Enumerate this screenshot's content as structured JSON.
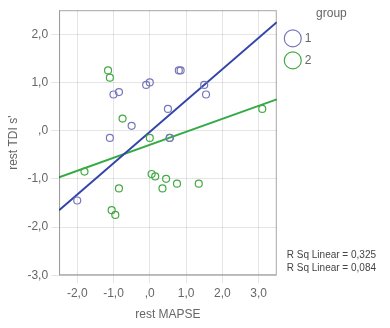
{
  "chart_data": {
    "type": "scatter",
    "xlabel": "rest MAPSE",
    "ylabel": "rest TDI s'",
    "series": [
      {
        "name": "1",
        "color": "#7777bb",
        "marker": "circle",
        "x": [
          -2.0,
          -1.1,
          -1.0,
          -0.85,
          -0.5,
          -0.1,
          0.0,
          0.5,
          0.55,
          0.8,
          0.85,
          1.5,
          1.55
        ],
        "values": [
          -1.45,
          -0.15,
          0.75,
          0.8,
          0.1,
          0.95,
          1.0,
          0.45,
          -0.15,
          1.25,
          1.25,
          0.95,
          0.75
        ]
      },
      {
        "name": "2",
        "color": "#44aa44",
        "marker": "circle",
        "x": [
          -1.8,
          -1.15,
          -1.1,
          -1.05,
          -0.95,
          -0.85,
          -0.75,
          0.0,
          0.05,
          0.15,
          0.35,
          0.45,
          0.55,
          0.75,
          1.35,
          3.1
        ],
        "values": [
          -0.85,
          1.25,
          1.1,
          -1.65,
          -1.75,
          -1.2,
          0.25,
          -0.15,
          -0.9,
          -0.95,
          -1.2,
          -1.0,
          -0.15,
          -1.1,
          -1.1,
          0.45
        ]
      },
      {
        "type": "line",
        "color": "#3344aa",
        "x": [
          -2.5,
          3.5
        ],
        "values": [
          -1.65,
          2.25
        ]
      },
      {
        "type": "line",
        "color": "#33aa44",
        "x": [
          -2.5,
          3.5
        ],
        "values": [
          -0.97,
          0.65
        ]
      }
    ],
    "xlim": [
      -2.5,
      3.5
    ],
    "ylim": [
      -3.0,
      2.5
    ],
    "xticks": [
      {
        "value": -2.0,
        "label": "-2,0"
      },
      {
        "value": -1.0,
        "label": "-1,0"
      },
      {
        "value": 0.0,
        "label": ",0"
      },
      {
        "value": 1.0,
        "label": "1,0"
      },
      {
        "value": 2.0,
        "label": "2,0"
      },
      {
        "value": 3.0,
        "label": "3,0"
      }
    ],
    "yticks": [
      {
        "value": -3.0,
        "label": "-3,0"
      },
      {
        "value": -2.0,
        "label": "-2,0"
      },
      {
        "value": -1.0,
        "label": "-1,0"
      },
      {
        "value": 0.0,
        "label": ",0"
      },
      {
        "value": 1.0,
        "label": "1,0"
      },
      {
        "value": 2.0,
        "label": "2,0"
      }
    ],
    "grid": true,
    "legend": "right",
    "legend_title": "group",
    "annotations": [
      "R Sq Linear = 0,325",
      "R Sq Linear = 0,084"
    ]
  }
}
